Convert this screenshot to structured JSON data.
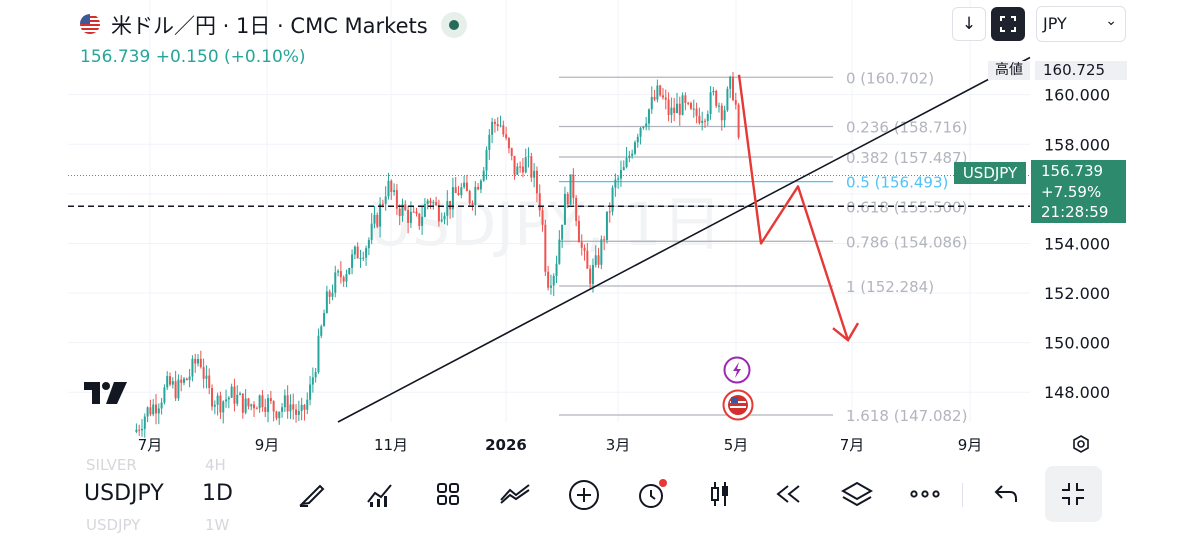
{
  "header": {
    "title": "米ドル／円 · 1日 · CMC Markets",
    "price": "156.739",
    "change": "+0.150",
    "change_pct": "(+0.10%)",
    "currency_select": "JPY",
    "currency_caret": "⌄",
    "download_icon": "↓"
  },
  "overlay": {
    "high_label": "高値",
    "high_value": "160.725",
    "symbol_label": "USDJPY",
    "last_price": "156.739",
    "last_pct": "+7.59%",
    "countdown": "21:28:59",
    "watermark": "USDJPY, 1日"
  },
  "bottom_bar": {
    "symbol": "USDJPY",
    "interval": "1D",
    "ghost_above_symbol": "SILVER",
    "ghost_above_interval": "4H",
    "ghost_below_symbol": "USDJPY",
    "ghost_below_interval": "1W"
  },
  "colors": {
    "up": "#26a69a",
    "down": "#ef5350",
    "fib_line": "#b2b5be",
    "fib_text": "#b2b5be",
    "fib_highlight": "#4fc3f7",
    "trendline": "#131722",
    "projection": "#e53935",
    "badge_bg": "#2e8a6d"
  },
  "chart_data": {
    "type": "candlestick",
    "x_axis": {
      "ticks": [
        "7月",
        "9月",
        "11月",
        "2026",
        "3月",
        "5月",
        "7月",
        "9月"
      ]
    },
    "y_axis": {
      "ticks": [
        "148.000",
        "150.000",
        "152.000",
        "154.000",
        "156.000",
        "158.000",
        "160.000"
      ],
      "range": [
        146.8,
        161.6
      ]
    },
    "fib_levels": [
      {
        "ratio": "0",
        "price": "160.702",
        "text": "0 (160.702)"
      },
      {
        "ratio": "0.236",
        "price": "158.716",
        "text": "0.236 (158.716)"
      },
      {
        "ratio": "0.382",
        "price": "157.487",
        "text": "0.382 (157.487)"
      },
      {
        "ratio": "0.5",
        "price": "156.493",
        "text": "0.5 (156.493)"
      },
      {
        "ratio": "0.618",
        "price": "155.500",
        "text": "0.618 (155.500)"
      },
      {
        "ratio": "0.786",
        "price": "154.086",
        "text": "0.786 (154.086)"
      },
      {
        "ratio": "1",
        "price": "152.284",
        "text": "1 (152.284)"
      },
      {
        "ratio": "1.618",
        "price": "147.082",
        "text": "1.618 (147.082)"
      }
    ],
    "high": 160.725,
    "last": 156.739,
    "dashed_level": 155.5,
    "price_path": [
      [
        0,
        146.4
      ],
      [
        8,
        147.2
      ],
      [
        16,
        147.6
      ],
      [
        24,
        148.3
      ],
      [
        30,
        148.1
      ],
      [
        38,
        148.6
      ],
      [
        46,
        149.5
      ],
      [
        52,
        148.0
      ],
      [
        60,
        147.6
      ],
      [
        70,
        147.9
      ],
      [
        80,
        147.4
      ],
      [
        90,
        147.8
      ],
      [
        100,
        147.3
      ],
      [
        110,
        147.6
      ],
      [
        118,
        146.9
      ],
      [
        124,
        147.8
      ],
      [
        130,
        149.5
      ],
      [
        136,
        151.5
      ],
      [
        142,
        152.4
      ],
      [
        150,
        152.9
      ],
      [
        158,
        153.6
      ],
      [
        166,
        154.0
      ],
      [
        174,
        155.2
      ],
      [
        180,
        156.4
      ],
      [
        186,
        155.6
      ],
      [
        194,
        155.2
      ],
      [
        202,
        154.8
      ],
      [
        210,
        155.9
      ],
      [
        216,
        155.3
      ],
      [
        224,
        155.6
      ],
      [
        232,
        156.2
      ],
      [
        240,
        155.8
      ],
      [
        248,
        157.0
      ],
      [
        254,
        158.7
      ],
      [
        260,
        159.0
      ],
      [
        266,
        157.8
      ],
      [
        272,
        156.8
      ],
      [
        278,
        157.4
      ],
      [
        284,
        156.8
      ],
      [
        290,
        155.4
      ],
      [
        294,
        152.5
      ],
      [
        300,
        153.0
      ],
      [
        306,
        155.5
      ],
      [
        312,
        156.5
      ],
      [
        318,
        154.0
      ],
      [
        324,
        152.6
      ],
      [
        330,
        153.2
      ],
      [
        336,
        154.6
      ],
      [
        342,
        156.3
      ],
      [
        350,
        157.0
      ],
      [
        358,
        158.5
      ],
      [
        366,
        159.3
      ],
      [
        374,
        160.1
      ],
      [
        382,
        159.2
      ],
      [
        390,
        159.6
      ],
      [
        398,
        159.1
      ],
      [
        406,
        159.3
      ],
      [
        414,
        160.0
      ],
      [
        420,
        159.3
      ],
      [
        426,
        160.5
      ],
      [
        430,
        159.2
      ],
      [
        432,
        156.6
      ]
    ],
    "trendline": {
      "from": [
        "2025-10-10",
        146.8
      ],
      "to": [
        "2026-09-20",
        163.4
      ]
    },
    "projection": [
      [
        160.725
      ],
      [
        154.0
      ],
      [
        156.3
      ],
      [
        150.1
      ]
    ]
  }
}
